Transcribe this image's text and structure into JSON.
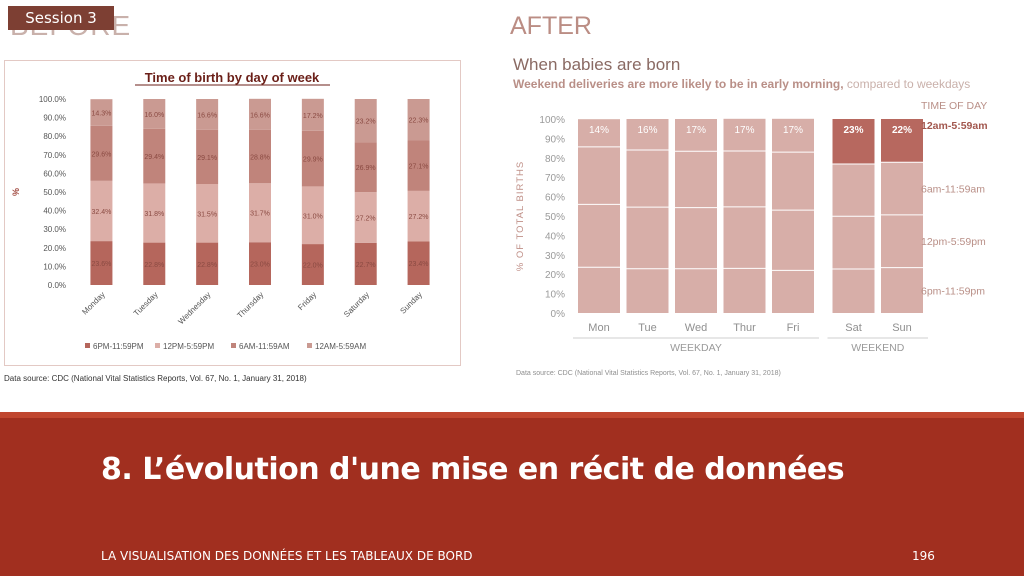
{
  "session_label": "Session 3",
  "before_title": "BEFORE",
  "before_chart": {
    "source": "Data source: CDC (National Vital Statistics Reports, Vol. 67, No. 1, January 31, 2018)"
  },
  "after": {
    "title": "AFTER",
    "subtitle": "When babies are born",
    "note_bold": "Weekend deliveries are more likely to be in early morning,",
    "note_light": " compared to weekdays",
    "source": "Data source: CDC (National Vital Statistics Reports, Vol. 67, No. 1, January 31, 2018)"
  },
  "footer": {
    "title": "8. L’évolution d'une mise en récit de données",
    "left": "LA VISUALISATION DES DONNÉES ET LES TABLEAUX DE BORD",
    "page": "196"
  },
  "colors": {
    "footer_band": "#a12f1f",
    "before_series": [
      "#b5665c",
      "#dcaea7",
      "#c0847b",
      "#ca9a92"
    ],
    "after_light": "#d7aea8",
    "after_dark": "#b7685f"
  },
  "chart_data": [
    {
      "type": "bar",
      "stacked": true,
      "title": "Time of birth by day of week",
      "ylabel": "%",
      "ylim": [
        0,
        100
      ],
      "yticks": [
        "0.0%",
        "10.0%",
        "20.0%",
        "30.0%",
        "40.0%",
        "50.0%",
        "60.0%",
        "70.0%",
        "80.0%",
        "90.0%",
        "100.0%"
      ],
      "categories": [
        "Monday",
        "Tuesday",
        "Wednesday",
        "Thursday",
        "Friday",
        "Saturday",
        "Sunday"
      ],
      "series": [
        {
          "name": "6PM-11:59PM",
          "values": [
            23.6,
            22.8,
            22.8,
            23.0,
            22.0,
            22.7,
            23.4
          ],
          "labels": [
            "23.6%",
            "22.8%",
            "22.8%",
            "23.0%",
            "22.0%",
            "22.7%",
            "23.4%"
          ]
        },
        {
          "name": "12PM-5:59PM",
          "values": [
            32.4,
            31.8,
            31.5,
            31.7,
            31.0,
            27.2,
            27.2
          ],
          "labels": [
            "32.4%",
            "31.8%",
            "31.5%",
            "31.7%",
            "31.0%",
            "27.2%",
            "27.2%"
          ]
        },
        {
          "name": "6AM-11:59AM",
          "values": [
            29.6,
            29.4,
            29.1,
            28.8,
            29.9,
            26.9,
            27.1
          ],
          "labels": [
            "29.6%",
            "29.4%",
            "29.1%",
            "28.8%",
            "29.9%",
            "26.9%",
            "27.1%"
          ]
        },
        {
          "name": "12AM-5:59AM",
          "values": [
            14.3,
            16.0,
            16.6,
            16.6,
            17.2,
            23.2,
            22.3
          ],
          "labels": [
            "14.3%",
            "16.0%",
            "16.6%",
            "16.6%",
            "17.2%",
            "23.2%",
            "22.3%"
          ]
        }
      ],
      "legend": "bottom",
      "grid": false
    },
    {
      "type": "bar",
      "stacked": true,
      "title": "When babies are born",
      "ylabel": "% OF TOTAL BIRTHS",
      "ylim": [
        0,
        100
      ],
      "yticks": [
        "0%",
        "10%",
        "20%",
        "30%",
        "40%",
        "50%",
        "60%",
        "70%",
        "80%",
        "90%",
        "100%"
      ],
      "categories": [
        "Mon",
        "Tue",
        "Wed",
        "Thur",
        "Fri",
        "Sat",
        "Sun"
      ],
      "groups": [
        {
          "label": "WEEKDAY",
          "categories": [
            "Mon",
            "Tue",
            "Wed",
            "Thur",
            "Fri"
          ]
        },
        {
          "label": "WEEKEND",
          "categories": [
            "Sat",
            "Sun"
          ]
        }
      ],
      "legend_title": "TIME OF DAY",
      "series": [
        {
          "name": "6pm-11:59pm",
          "values": [
            23.6,
            22.8,
            22.8,
            23.0,
            22.0,
            22.7,
            23.4
          ]
        },
        {
          "name": "12pm-5:59pm",
          "values": [
            32.4,
            31.8,
            31.5,
            31.7,
            31.0,
            27.2,
            27.2
          ]
        },
        {
          "name": "6am-11:59am",
          "values": [
            29.6,
            29.4,
            29.1,
            28.8,
            29.9,
            26.9,
            27.1
          ]
        },
        {
          "name": "12am-5:59am",
          "values": [
            14.3,
            16.0,
            16.6,
            16.6,
            17.2,
            23.2,
            22.3
          ],
          "labels": [
            "14%",
            "16%",
            "17%",
            "17%",
            "17%",
            "23%",
            "22%"
          ]
        }
      ],
      "highlight": [
        "Sat",
        "Sun"
      ],
      "legend": "right",
      "grid": false
    }
  ]
}
